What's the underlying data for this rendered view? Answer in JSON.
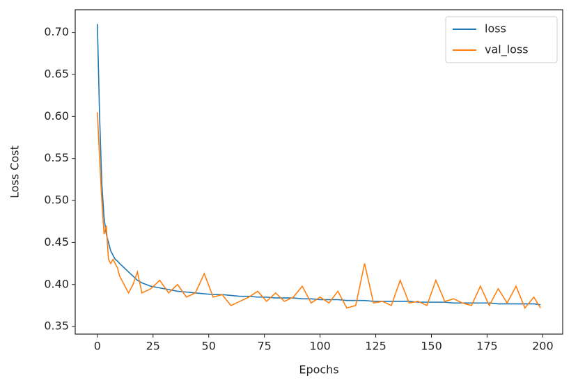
{
  "chart_data": {
    "type": "line",
    "xlabel": "Epochs",
    "ylabel": "Loss Cost",
    "x": [
      0,
      1,
      2,
      3,
      4,
      5,
      6,
      7,
      8,
      9,
      10,
      12,
      14,
      16,
      18,
      20,
      24,
      28,
      32,
      36,
      40,
      44,
      48,
      52,
      56,
      60,
      64,
      68,
      72,
      76,
      80,
      84,
      88,
      92,
      96,
      100,
      104,
      108,
      112,
      116,
      120,
      124,
      128,
      132,
      136,
      140,
      144,
      148,
      152,
      156,
      160,
      164,
      168,
      172,
      176,
      180,
      184,
      188,
      192,
      196,
      199
    ],
    "series": [
      {
        "name": "loss",
        "color": "#1f77b4",
        "values": [
          0.71,
          0.6,
          0.52,
          0.48,
          0.46,
          0.45,
          0.44,
          0.435,
          0.43,
          0.428,
          0.425,
          0.42,
          0.415,
          0.41,
          0.405,
          0.402,
          0.398,
          0.396,
          0.394,
          0.392,
          0.391,
          0.39,
          0.389,
          0.388,
          0.388,
          0.387,
          0.386,
          0.386,
          0.385,
          0.385,
          0.384,
          0.384,
          0.384,
          0.383,
          0.383,
          0.382,
          0.382,
          0.382,
          0.381,
          0.381,
          0.381,
          0.38,
          0.38,
          0.38,
          0.38,
          0.38,
          0.379,
          0.379,
          0.379,
          0.379,
          0.378,
          0.378,
          0.378,
          0.378,
          0.378,
          0.377,
          0.377,
          0.377,
          0.377,
          0.377,
          0.376
        ]
      },
      {
        "name": "val_loss",
        "color": "#ff7f0e",
        "values": [
          0.605,
          0.55,
          0.5,
          0.46,
          0.47,
          0.43,
          0.425,
          0.43,
          0.425,
          0.42,
          0.41,
          0.4,
          0.39,
          0.4,
          0.415,
          0.39,
          0.395,
          0.405,
          0.39,
          0.4,
          0.385,
          0.39,
          0.413,
          0.385,
          0.388,
          0.375,
          0.38,
          0.385,
          0.392,
          0.38,
          0.39,
          0.38,
          0.385,
          0.398,
          0.378,
          0.385,
          0.378,
          0.392,
          0.372,
          0.375,
          0.425,
          0.378,
          0.38,
          0.375,
          0.405,
          0.378,
          0.38,
          0.375,
          0.405,
          0.38,
          0.383,
          0.378,
          0.375,
          0.398,
          0.375,
          0.395,
          0.378,
          0.398,
          0.372,
          0.385,
          0.372
        ]
      }
    ],
    "xlim": [
      -9.95,
      208.95
    ],
    "xticks": [
      0,
      25,
      50,
      75,
      100,
      125,
      150,
      175,
      200
    ],
    "ylim": [
      0.341,
      0.727
    ],
    "yticks": [
      0.35,
      {
        "value": 0.4,
        "label": "0.40"
      },
      0.45,
      {
        "value": 0.5,
        "label": "0.50"
      },
      0.55,
      {
        "value": 0.6,
        "label": "0.60"
      },
      0.65,
      {
        "value": 0.7,
        "label": "0.70"
      }
    ],
    "legend": "upper right"
  }
}
